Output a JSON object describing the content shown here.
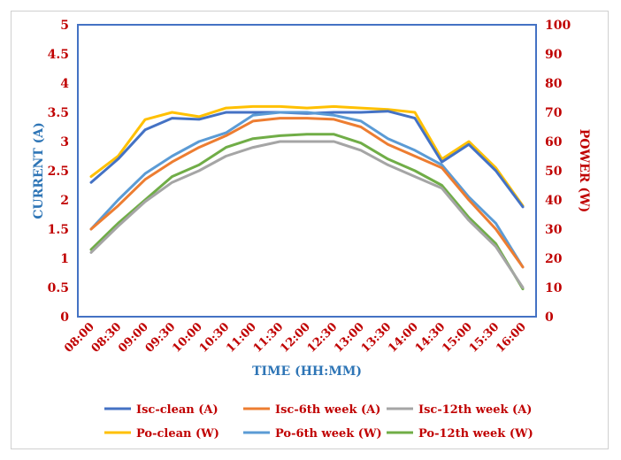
{
  "chart_data": {
    "type": "line",
    "xlabel": "TIME (HH:MM)",
    "ylabel_left": "CURRENT (A)",
    "ylabel_right": "POWER (W)",
    "ylim_left": [
      0,
      5
    ],
    "ylim_right": [
      0,
      100
    ],
    "yticks_left": [
      "0",
      "0.5",
      "1",
      "1.5",
      "2",
      "2.5",
      "3",
      "3.5",
      "4",
      "4.5",
      "5"
    ],
    "yticks_right": [
      "0",
      "10",
      "20",
      "30",
      "40",
      "50",
      "60",
      "70",
      "80",
      "90",
      "100"
    ],
    "categories": [
      "08:00",
      "08:30",
      "09:00",
      "09:30",
      "10:00",
      "10:30",
      "11:00",
      "11:30",
      "12:00",
      "12:30",
      "13:00",
      "13:30",
      "14:00",
      "14:30",
      "15:00",
      "15:30",
      "16:00"
    ],
    "grid": false,
    "legend_position": "bottom",
    "series": [
      {
        "name": "Isc-clean (A)",
        "axis": "left",
        "color": "#4472c4",
        "values": [
          2.3,
          2.7,
          3.2,
          3.4,
          3.38,
          3.5,
          3.5,
          3.5,
          3.48,
          3.5,
          3.5,
          3.52,
          3.4,
          2.65,
          2.95,
          2.5,
          1.88
        ]
      },
      {
        "name": "Isc-6th week (A)",
        "axis": "left",
        "color": "#ed7d31",
        "values": [
          1.5,
          1.9,
          2.35,
          2.65,
          2.9,
          3.1,
          3.35,
          3.4,
          3.4,
          3.38,
          3.25,
          2.95,
          2.75,
          2.55,
          2.0,
          1.5,
          0.85
        ]
      },
      {
        "name": "Isc-12th week (A)",
        "axis": "left",
        "color": "#a5a5a5",
        "values": [
          1.1,
          1.55,
          1.97,
          2.3,
          2.5,
          2.75,
          2.9,
          3.0,
          3.0,
          3.0,
          2.85,
          2.6,
          2.4,
          2.2,
          1.65,
          1.2,
          0.5
        ]
      },
      {
        "name": "Po-clean (W)",
        "axis": "right",
        "color": "#ffc000",
        "values": [
          48,
          55,
          67.5,
          70,
          68.5,
          71.5,
          72,
          72,
          71.5,
          72,
          71.5,
          71,
          70,
          54,
          60,
          51,
          38
        ]
      },
      {
        "name": "Po-6th week (W)",
        "axis": "right",
        "color": "#5b9bd5",
        "values": [
          30,
          40,
          49,
          55,
          60,
          63,
          69,
          70,
          70,
          69,
          67,
          61,
          57,
          52,
          41,
          32,
          17
        ]
      },
      {
        "name": "Po-12th week (W)",
        "axis": "right",
        "color": "#70ad47",
        "values": [
          23,
          32,
          40,
          48,
          52,
          58,
          61,
          62,
          62.5,
          62.5,
          59.5,
          54,
          50,
          45,
          34,
          25,
          9.5
        ]
      }
    ],
    "colors": {
      "tick_label": "#c00000",
      "left_axis_title": "#2e75b6",
      "right_axis_title": "#c00000",
      "x_axis_title": "#2e75b6",
      "plot_border": "#4472c4"
    }
  }
}
